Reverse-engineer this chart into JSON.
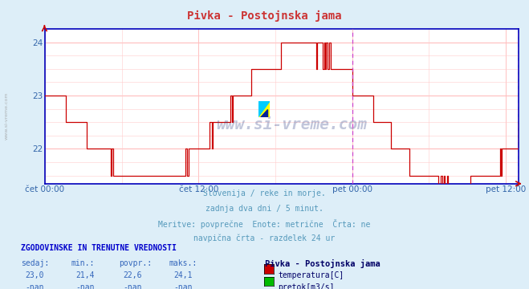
{
  "title": "Pivka - Postojnska jama",
  "bg_color": "#ddeef8",
  "plot_bg_color": "#ffffff",
  "grid_color": "#ffcccc",
  "grid_major_color": "#ffaaaa",
  "line_color": "#cc0000",
  "axis_color": "#0000bb",
  "text_color": "#5599bb",
  "label_color": "#3366aa",
  "ylim_min": 21.35,
  "ylim_max": 24.25,
  "yticks": [
    22,
    23,
    24
  ],
  "xtick_labels": [
    "čet 00:00",
    "čet 12:00",
    "pet 00:00",
    "pet 12:00"
  ],
  "vline_color": "#cc44cc",
  "subtitle_lines": [
    "Slovenija / reke in morje.",
    "zadnja dva dni / 5 minut.",
    "Meritve: povprečne  Enote: metrične  Črta: ne",
    "navpična črta - razdelek 24 ur"
  ],
  "table_header": "ZGODOVINSKE IN TRENUTNE VREDNOSTI",
  "table_cols": [
    "sedaj:",
    "min.:",
    "povpr.:",
    "maks.:"
  ],
  "table_vals_temp": [
    "23,0",
    "21,4",
    "22,6",
    "24,1"
  ],
  "table_vals_pretok": [
    "-nan",
    "-nan",
    "-nan",
    "-nan"
  ],
  "legend_label": "Pivka - Postojnska jama",
  "legend_items": [
    "temperatura[C]",
    "pretok[m3/s]"
  ],
  "legend_colors": [
    "#cc0000",
    "#00bb00"
  ],
  "watermark": "www.si-vreme.com",
  "watermark_color": "#334488",
  "logo_colors": [
    "#ffff00",
    "#00ccff",
    "#002299"
  ],
  "left_watermark": "www.si-vreme.com",
  "n_points": 432
}
